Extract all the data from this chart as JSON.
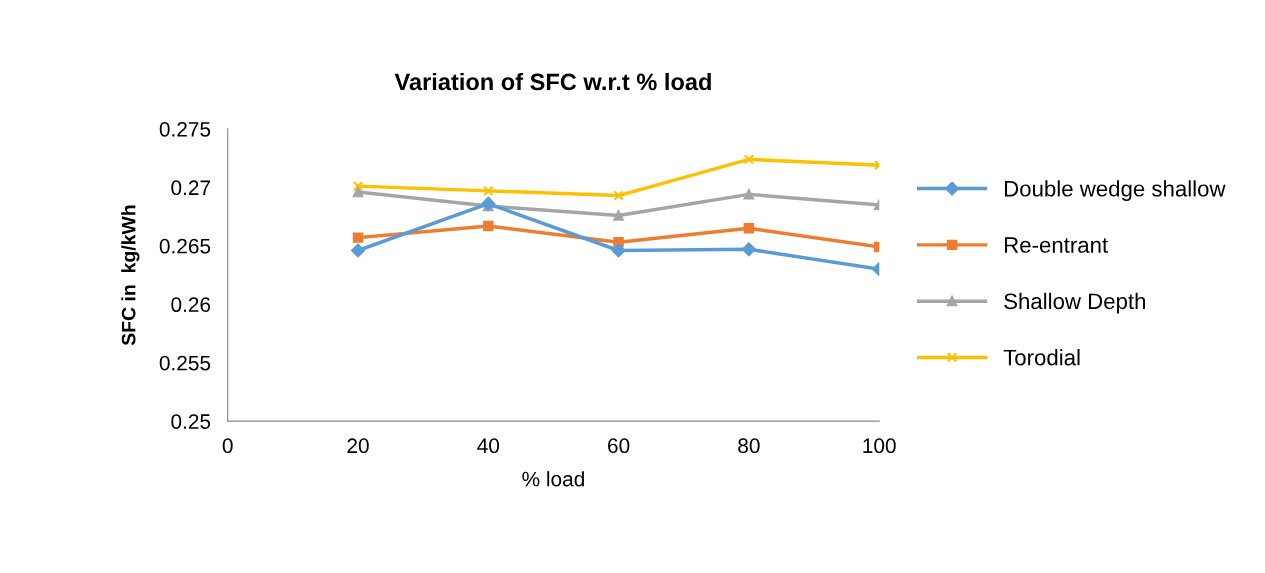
{
  "chart_data": {
    "type": "line",
    "title": "Variation of SFC w.r.t % load",
    "xlabel": "% load",
    "ylabel": "SFC in  kg/kWh",
    "x": [
      20,
      40,
      60,
      80,
      100
    ],
    "series": [
      {
        "name": "Double wedge shallow",
        "color": "#5b9bd5",
        "marker": "diamond",
        "values": [
          0.2646,
          0.2686,
          0.2646,
          0.2647,
          0.263
        ]
      },
      {
        "name": "Re-entrant",
        "color": "#ed7d31",
        "marker": "square",
        "values": [
          0.2657,
          0.2667,
          0.2653,
          0.2665,
          0.2649
        ]
      },
      {
        "name": "Shallow Depth",
        "color": "#a5a5a5",
        "marker": "triangle",
        "values": [
          0.2696,
          0.2684,
          0.2676,
          0.2694,
          0.2685
        ]
      },
      {
        "name": "Torodial",
        "color": "#ffc000",
        "marker": "cross",
        "values": [
          0.2701,
          0.2697,
          0.2693,
          0.2724,
          0.2719
        ]
      }
    ],
    "xlim": [
      0,
      100
    ],
    "xticks": [
      0,
      20,
      40,
      60,
      80,
      100
    ],
    "ylim": [
      0.25,
      0.275
    ],
    "yticks": [
      0.25,
      0.255,
      0.26,
      0.265,
      0.27,
      0.275
    ],
    "grid": false,
    "legend": "right",
    "line_style": "solid"
  }
}
